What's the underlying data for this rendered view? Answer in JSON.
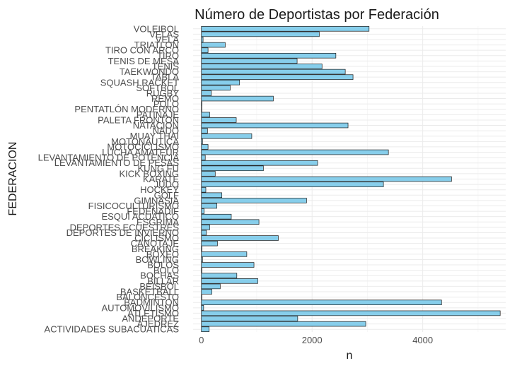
{
  "chart_data": {
    "type": "bar",
    "orientation": "horizontal",
    "title": "Número de Deportistas por Federación",
    "xlabel": "n",
    "ylabel": "FEDERACION",
    "xlim": [
      -150,
      5500
    ],
    "x_ticks": [
      0,
      2000,
      4000
    ],
    "grid": true,
    "bar_color": "#87CEEB",
    "categories": [
      "ACTIVIDADES SUBACUATICAS",
      "AJEDREZ",
      "ANDEPORTE",
      "ATLETISMO",
      "AUTOMOVILISMO",
      "BADMINTON",
      "BALONCESTO",
      "BASKETBALL",
      "BEISBOL",
      "BILLAR",
      "BOCHAS",
      "BOLO",
      "BOLOS",
      "BOWLING",
      "BOXEO",
      "BREAKING",
      "CANOTAJE",
      "CICLISMO",
      "DEPORTES DE INVIERNO",
      "DEPORTES ECUESTRES",
      "ESGRIMA",
      "ESQUÍ ACUATICO",
      "FEDENADIF",
      "FISICOCULTURISMO",
      "GIMNASIA",
      "GOLF",
      "HOCKEY",
      "JUDO",
      "KARATE",
      "KICK BOXING",
      "KUNG FU",
      "LEVANTAMIENTO DE PESAS",
      "LEVANTAMIENTO DE POTENCIA",
      "LUCHA AMATEUR",
      "MOTOCICLISMO",
      "MOTONAUTICA",
      "MUAY THAI",
      "NADO",
      "NATACION",
      "PALETA FRONTON",
      "PATINAJE",
      "PENTATLÓN MODERNO",
      "POLO",
      "REMO",
      "RUGBY",
      "SOFTBOL",
      "SQUASH RACKET",
      "TABLA",
      "TAEKWONDO",
      "TENIS",
      "TENIS DE MESA",
      "TIRO",
      "TIRO CON ARCO",
      "TRIATLON",
      "VELA",
      "VELAS",
      "VOLEIBOL"
    ],
    "values": [
      140,
      2970,
      1740,
      5400,
      40,
      4340,
      0,
      190,
      340,
      1020,
      640,
      10,
      950,
      20,
      820,
      10,
      290,
      1390,
      90,
      150,
      1040,
      540,
      50,
      280,
      1900,
      370,
      80,
      3290,
      4520,
      250,
      1120,
      2100,
      70,
      3380,
      120,
      20,
      910,
      110,
      2650,
      630,
      150,
      0,
      10,
      1300,
      180,
      520,
      690,
      2740,
      2600,
      2180,
      1730,
      2430,
      120,
      430,
      30,
      2130,
      3030
    ]
  }
}
